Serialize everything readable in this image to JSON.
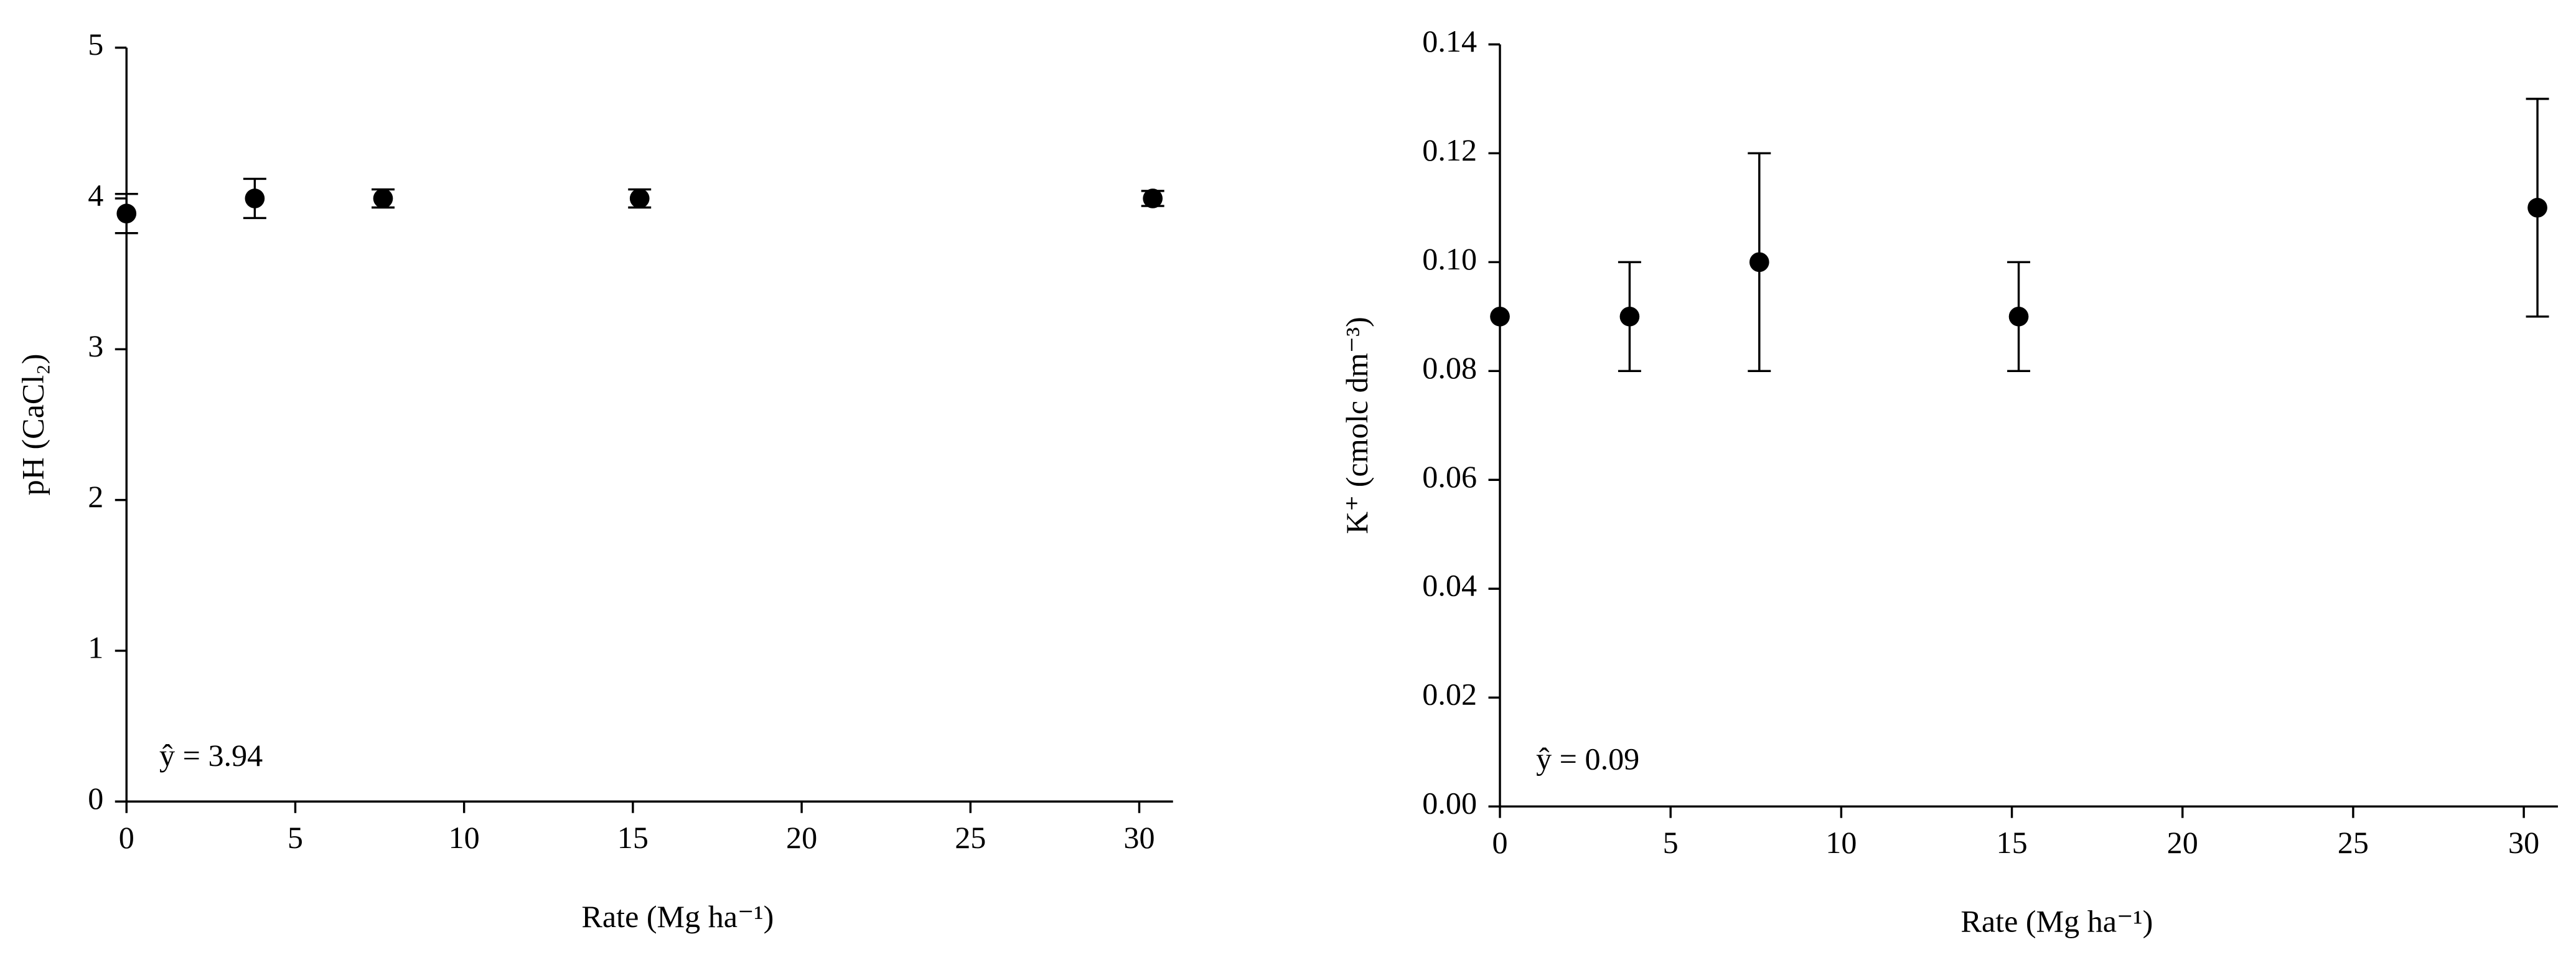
{
  "chart_data": [
    {
      "type": "scatter",
      "x": [
        0,
        3.8,
        7.6,
        15.2,
        30.4
      ],
      "values": [
        3.9,
        4.0,
        4.0,
        4.0,
        4.0
      ],
      "errors": [
        0.13,
        0.13,
        0.06,
        0.06,
        0.05
      ],
      "color": "#000000",
      "xlim": [
        0,
        31
      ],
      "ylim": [
        0,
        5
      ],
      "xticks": [
        0,
        5,
        10,
        15,
        20,
        25,
        30
      ],
      "yticks": [
        0,
        1,
        2,
        3,
        4,
        5
      ],
      "x_label": "Rate (Mg ha⁻¹)",
      "y_label": "pH (CaCl₂)",
      "annotation": "ŷ  = 3.94"
    },
    {
      "type": "scatter",
      "x": [
        0,
        3.8,
        7.6,
        15.2,
        30.4
      ],
      "values": [
        0.09,
        0.09,
        0.1,
        0.09,
        0.11
      ],
      "errors": [
        0,
        0.01,
        0.02,
        0.01,
        0.02
      ],
      "color": "#000000",
      "xlim": [
        0,
        31
      ],
      "ylim": [
        0,
        0.14
      ],
      "xticks": [
        0,
        5,
        10,
        15,
        20,
        25,
        30
      ],
      "yticks": [
        {
          "value": 0,
          "label": "0.00"
        },
        0.02,
        0.04,
        0.06,
        0.08,
        {
          "value": 0.1,
          "label": "0.10"
        },
        0.12,
        0.14
      ],
      "x_label": "Rate (Mg ha⁻¹)",
      "y_label": "K⁺ (cmolc dm⁻³)",
      "annotation": "ŷ  = 0.09"
    }
  ]
}
